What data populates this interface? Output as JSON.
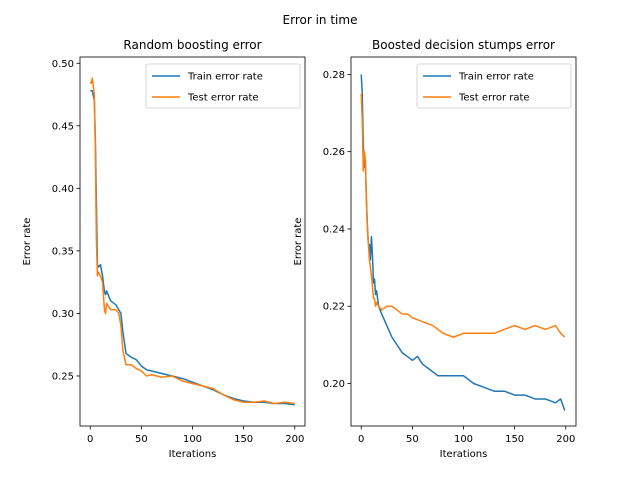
{
  "figure": {
    "title": "Error in time"
  },
  "colors": {
    "train": "#1f77b4",
    "test": "#ff7f0e"
  },
  "chart_data": [
    {
      "type": "line",
      "title": "Random boosting error",
      "xlabel": "Iterations",
      "ylabel": "Error rate",
      "xlim": [
        -10,
        210
      ],
      "ylim": [
        0.21,
        0.505
      ],
      "xticks": [
        0,
        50,
        100,
        150,
        200
      ],
      "yticks": [
        0.25,
        0.3,
        0.35,
        0.4,
        0.45,
        0.5
      ],
      "ytick_labels": [
        "0.25",
        "0.30",
        "0.35",
        "0.40",
        "0.45",
        "0.50"
      ],
      "grid": false,
      "legend": "top-right",
      "series": [
        {
          "name": "Train error rate",
          "x": [
            0,
            2,
            4,
            5,
            6,
            7,
            8,
            10,
            12,
            14,
            15,
            16,
            20,
            25,
            30,
            32,
            35,
            40,
            45,
            50,
            55,
            60,
            70,
            80,
            90,
            100,
            110,
            120,
            130,
            140,
            150,
            160,
            170,
            180,
            190,
            200
          ],
          "y": [
            0.478,
            0.478,
            0.47,
            0.44,
            0.39,
            0.339,
            0.337,
            0.339,
            0.33,
            0.317,
            0.315,
            0.318,
            0.31,
            0.307,
            0.3,
            0.285,
            0.268,
            0.265,
            0.263,
            0.258,
            0.255,
            0.254,
            0.252,
            0.25,
            0.248,
            0.245,
            0.242,
            0.239,
            0.235,
            0.232,
            0.23,
            0.229,
            0.229,
            0.228,
            0.228,
            0.227
          ]
        },
        {
          "name": "Test error rate",
          "x": [
            0,
            1,
            2,
            3,
            4,
            5,
            6,
            7,
            8,
            10,
            12,
            14,
            15,
            16,
            20,
            25,
            28,
            30,
            32,
            35,
            40,
            45,
            50,
            55,
            60,
            70,
            80,
            90,
            100,
            110,
            120,
            130,
            140,
            150,
            160,
            170,
            180,
            190,
            200
          ],
          "y": [
            0.485,
            0.484,
            0.488,
            0.482,
            0.475,
            0.43,
            0.36,
            0.33,
            0.333,
            0.33,
            0.325,
            0.302,
            0.3,
            0.308,
            0.303,
            0.303,
            0.3,
            0.29,
            0.27,
            0.259,
            0.259,
            0.256,
            0.254,
            0.25,
            0.251,
            0.249,
            0.25,
            0.246,
            0.244,
            0.242,
            0.24,
            0.235,
            0.231,
            0.229,
            0.229,
            0.23,
            0.228,
            0.229,
            0.228
          ]
        }
      ]
    },
    {
      "type": "line",
      "title": "Boosted decision stumps error",
      "xlabel": "Iterations",
      "ylabel": "Error rate",
      "xlim": [
        -10,
        210
      ],
      "ylim": [
        0.189,
        0.2845
      ],
      "xticks": [
        0,
        50,
        100,
        150,
        200
      ],
      "yticks": [
        0.2,
        0.22,
        0.24,
        0.26,
        0.28
      ],
      "ytick_labels": [
        "0.20",
        "0.22",
        "0.24",
        "0.26",
        "0.28"
      ],
      "grid": false,
      "legend": "top-right",
      "series": [
        {
          "name": "Train error rate",
          "x": [
            0,
            1,
            2,
            3,
            4,
            5,
            6,
            7,
            8,
            9,
            10,
            11,
            12,
            13,
            14,
            15,
            17,
            20,
            25,
            30,
            35,
            40,
            45,
            50,
            55,
            60,
            70,
            75,
            80,
            90,
            100,
            110,
            120,
            130,
            140,
            150,
            160,
            170,
            180,
            190,
            195,
            199
          ],
          "y": [
            0.28,
            0.275,
            0.262,
            0.256,
            0.258,
            0.248,
            0.241,
            0.236,
            0.236,
            0.232,
            0.238,
            0.233,
            0.226,
            0.227,
            0.223,
            0.224,
            0.22,
            0.218,
            0.215,
            0.212,
            0.21,
            0.208,
            0.207,
            0.206,
            0.207,
            0.205,
            0.203,
            0.202,
            0.202,
            0.202,
            0.202,
            0.2,
            0.199,
            0.198,
            0.198,
            0.197,
            0.197,
            0.196,
            0.196,
            0.195,
            0.196,
            0.193
          ]
        },
        {
          "name": "Test error rate",
          "x": [
            0,
            1,
            2,
            3,
            4,
            5,
            6,
            7,
            8,
            9,
            10,
            11,
            12,
            13,
            14,
            15,
            17,
            20,
            25,
            30,
            35,
            40,
            45,
            50,
            60,
            70,
            80,
            90,
            100,
            110,
            120,
            130,
            140,
            150,
            160,
            170,
            180,
            190,
            195,
            199
          ],
          "y": [
            0.275,
            0.268,
            0.255,
            0.26,
            0.258,
            0.248,
            0.24,
            0.236,
            0.232,
            0.23,
            0.228,
            0.225,
            0.222,
            0.222,
            0.22,
            0.221,
            0.22,
            0.219,
            0.22,
            0.22,
            0.219,
            0.218,
            0.218,
            0.217,
            0.216,
            0.215,
            0.213,
            0.212,
            0.213,
            0.213,
            0.213,
            0.213,
            0.214,
            0.215,
            0.214,
            0.215,
            0.214,
            0.215,
            0.213,
            0.212
          ]
        }
      ]
    }
  ]
}
